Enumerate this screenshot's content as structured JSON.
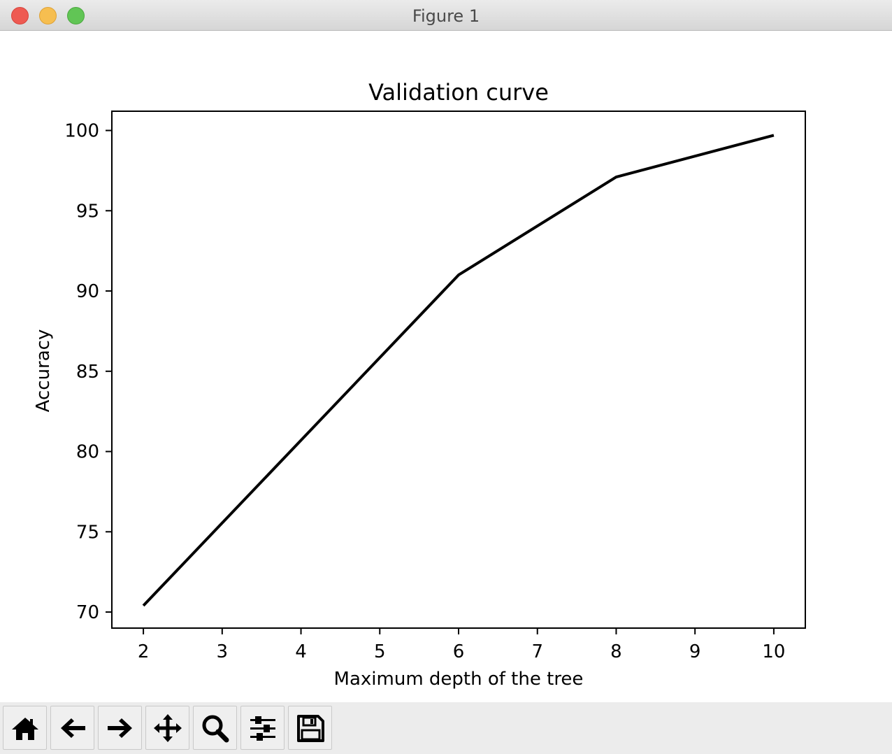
{
  "window": {
    "title": "Figure 1"
  },
  "chart_data": {
    "type": "line",
    "title": "Validation curve",
    "xlabel": "Maximum depth of the tree",
    "ylabel": "Accuracy",
    "x": [
      2,
      6,
      8,
      10
    ],
    "series": [
      {
        "values": [
          70.4,
          91.0,
          97.1,
          99.7
        ],
        "color": "#000000"
      }
    ],
    "xlim": [
      1.6,
      10.4
    ],
    "ylim": [
      69.0,
      101.2
    ],
    "xticks": [
      2,
      3,
      4,
      5,
      6,
      7,
      8,
      9,
      10
    ],
    "yticks": [
      70,
      75,
      80,
      85,
      90,
      95,
      100
    ],
    "grid": false,
    "legend": "none"
  },
  "toolbar": {
    "buttons": [
      {
        "name": "home",
        "icon": "home-icon"
      },
      {
        "name": "back",
        "icon": "arrow-left-icon"
      },
      {
        "name": "forward",
        "icon": "arrow-right-icon"
      },
      {
        "name": "pan",
        "icon": "move-icon"
      },
      {
        "name": "zoom",
        "icon": "magnifier-icon"
      },
      {
        "name": "configure-subplots",
        "icon": "sliders-icon"
      },
      {
        "name": "save",
        "icon": "floppy-disk-icon"
      }
    ]
  }
}
